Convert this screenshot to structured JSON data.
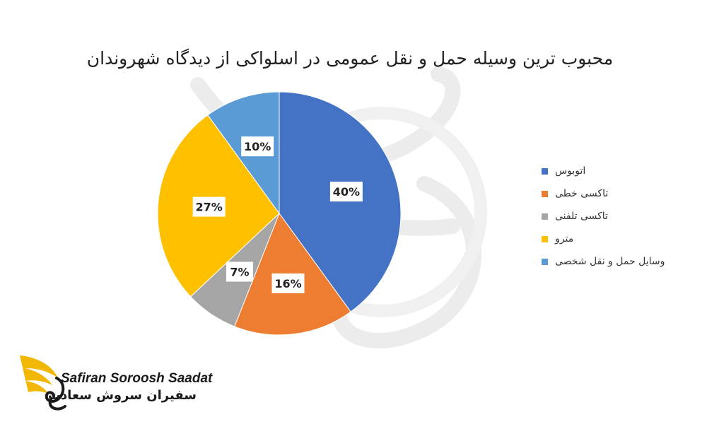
{
  "chart_data": {
    "type": "pie",
    "title": "محبوب ترین وسیله حمل و نقل عمومی در اسلواکی از دیدگاه شهروندان",
    "slices": [
      {
        "name": "اتوبوس",
        "value": 40,
        "label": "40%",
        "color": "#4472C4"
      },
      {
        "name": "تاکسی خطی",
        "value": 16,
        "label": "16%",
        "color": "#ED7D31"
      },
      {
        "name": "تاکسی تلفنی",
        "value": 7,
        "label": "7%",
        "color": "#A5A5A5"
      },
      {
        "name": "مترو",
        "value": 27,
        "label": "27%",
        "color": "#FFC000"
      },
      {
        "name": "وسایل حمل و نقل شخصی",
        "value": 10,
        "label": "10%",
        "color": "#5B9BD5"
      }
    ],
    "legend_position": "right",
    "start_angle": "12 o'clock, clockwise"
  },
  "logo": {
    "name_en": "Safiran Soroosh Saadat",
    "name_fa": "سفیران سروش سعادت",
    "icon": "golden-wing-icon"
  }
}
